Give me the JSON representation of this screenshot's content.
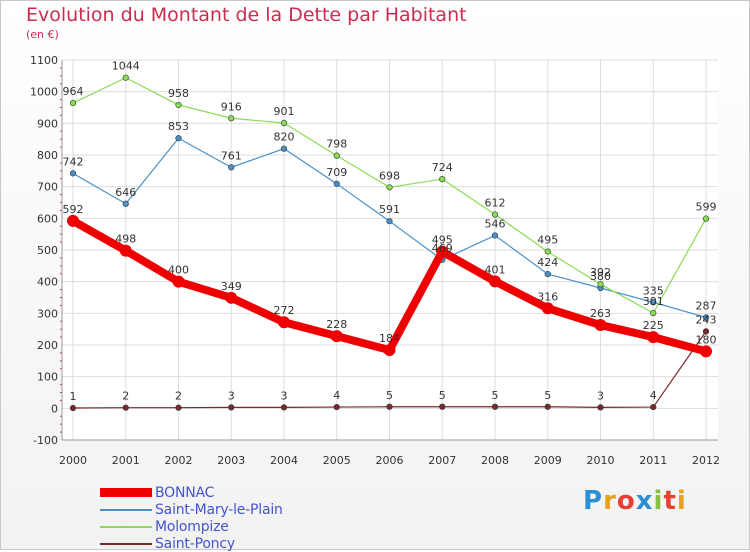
{
  "header": {
    "title": "Evolution du Montant de la Dette par Habitant",
    "unit": "(en €)"
  },
  "logo": {
    "text": "Proxiti",
    "letter_colors": [
      "#2a8fd4",
      "#e8a020",
      "#e84030",
      "#2a8fd4",
      "#88c040",
      "#e84030",
      "#e8a020"
    ]
  },
  "chart_data": {
    "type": "line",
    "x": [
      "2000",
      "2001",
      "2002",
      "2003",
      "2004",
      "2005",
      "2006",
      "2007",
      "2008",
      "2009",
      "2010",
      "2011",
      "2012"
    ],
    "ylim": [
      -100,
      1100
    ],
    "yticks": [
      "-100",
      "0",
      "100",
      "200",
      "300",
      "400",
      "500",
      "600",
      "700",
      "800",
      "900",
      "1000",
      "1100"
    ],
    "grid": true,
    "legend_placement": "bottom-left",
    "series": [
      {
        "name": "BONNAC",
        "color": "#ee0000",
        "width": 8,
        "values": [
          592,
          498,
          400,
          349,
          272,
          228,
          184,
          495,
          401,
          316,
          263,
          225,
          180
        ],
        "labels": [
          "592",
          "498",
          "400",
          "349",
          "272",
          "228",
          "184",
          "495",
          "401",
          "316",
          "263",
          "225",
          "180"
        ]
      },
      {
        "name": "Saint-Mary-le-Plain",
        "color": "#4a90c8",
        "width": 1.2,
        "values": [
          742,
          646,
          853,
          761,
          820,
          709,
          591,
          469,
          546,
          424,
          380,
          335,
          287
        ],
        "labels": [
          "742",
          "646",
          "853",
          "761",
          "820",
          "709",
          "591",
          "469",
          "546",
          "424",
          "380",
          "335",
          "287"
        ]
      },
      {
        "name": "Molompize",
        "color": "#88dd55",
        "width": 1.2,
        "values": [
          964,
          1044,
          958,
          916,
          901,
          798,
          698,
          724,
          612,
          495,
          392,
          301,
          599
        ],
        "labels": [
          "964",
          "1044",
          "958",
          "916",
          "901",
          "798",
          "698",
          "724",
          "612",
          "495",
          "392",
          "301",
          "599"
        ]
      },
      {
        "name": "Saint-Poncy",
        "color": "#7a2a2a",
        "width": 1.2,
        "values": [
          1,
          2,
          2,
          3,
          3,
          4,
          5,
          5,
          5,
          5,
          3,
          4,
          243
        ],
        "labels": [
          "1",
          "2",
          "2",
          "3",
          "3",
          "4",
          "5",
          "5",
          "5",
          "5",
          "3",
          "4",
          "243"
        ]
      }
    ]
  }
}
